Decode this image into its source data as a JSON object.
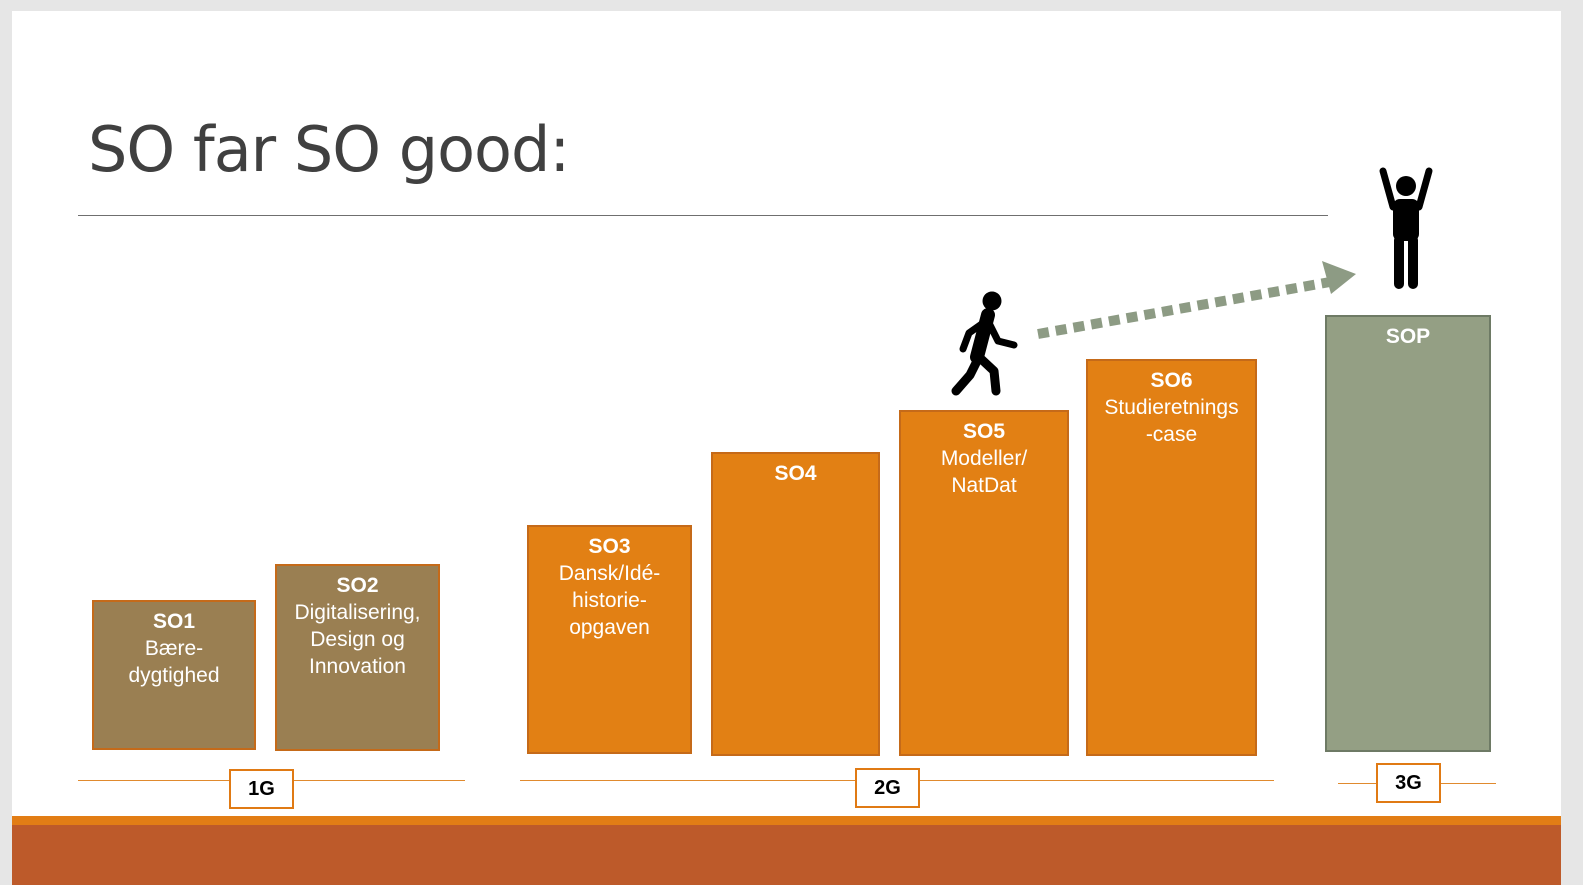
{
  "slide": {
    "title": "SO far SO good:"
  },
  "blocks": [
    {
      "code": "SO1",
      "description": "Bære-\ndygtighed"
    },
    {
      "code": "SO2",
      "description": "Digitalisering,\nDesign og\nInnovation"
    },
    {
      "code": "SO3",
      "description": "Dansk/Idé-\nhistorie-\nopgaven"
    },
    {
      "code": "SO4",
      "description": ""
    },
    {
      "code": "SO5",
      "description": "Modeller/\nNatDat"
    },
    {
      "code": "SO6",
      "description": "Studieretnings\n-case"
    },
    {
      "code": "SOP",
      "description": ""
    }
  ],
  "grades": [
    "1G",
    "2G",
    "3G"
  ],
  "colors": {
    "brown_block": "#9a7f52",
    "orange_block": "#e28014",
    "green_block": "#949f84",
    "arrow": "#8d9b84",
    "footer": "#bd5a2a",
    "footer_stripe": "#e27d15"
  },
  "icons": [
    "walking-person-icon",
    "cheering-person-icon",
    "dotted-arrow-icon"
  ]
}
